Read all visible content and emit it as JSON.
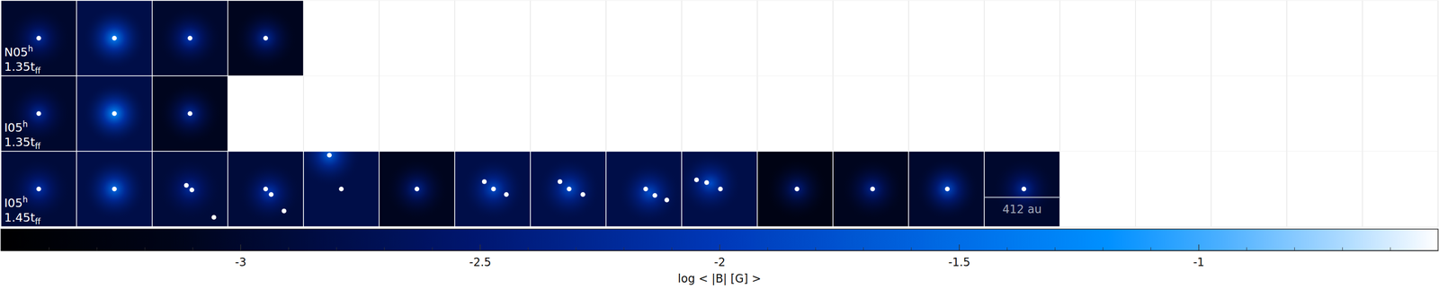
{
  "chart_data": {
    "type": "image_grid",
    "columns": 19,
    "xlim": [
      -206,
      206
    ],
    "ylim": [
      -206,
      206
    ],
    "scale_bar": {
      "value": 412,
      "label": "412 au",
      "row": 2,
      "panel": 13
    },
    "rows": [
      {
        "name": "N05",
        "name_sup": "h",
        "time": "1.35t",
        "time_sub": "ff",
        "panels": [
          {
            "background": -3.0,
            "peak": -2.2,
            "glow": [
              0,
              0
            ],
            "sinks": [
              [
                0,
                0
              ]
            ]
          },
          {
            "background": -2.8,
            "peak": -1.3,
            "glow": [
              0,
              0
            ],
            "sinks": [
              [
                0,
                0
              ]
            ]
          },
          {
            "background": -3.0,
            "peak": -2.0,
            "glow": [
              0,
              0
            ],
            "sinks": [
              [
                0,
                0
              ]
            ]
          },
          {
            "background": -3.1,
            "peak": -2.2,
            "glow": [
              0,
              0
            ],
            "sinks": [
              [
                0,
                0
              ]
            ]
          }
        ]
      },
      {
        "name": "I05",
        "name_sup": "h",
        "time": "1.35t",
        "time_sub": "ff",
        "panels": [
          {
            "background": -3.0,
            "peak": -2.2,
            "glow": [
              0,
              0
            ],
            "sinks": [
              [
                0,
                0
              ]
            ]
          },
          {
            "background": -2.8,
            "peak": -1.2,
            "glow": [
              0,
              0
            ],
            "sinks": [
              [
                0,
                0
              ]
            ]
          },
          {
            "background": -3.1,
            "peak": -2.2,
            "glow": [
              0,
              0
            ],
            "sinks": [
              [
                0,
                0
              ]
            ]
          }
        ]
      },
      {
        "name": "I05",
        "name_sup": "h",
        "time": "1.45t",
        "time_sub": "ff",
        "panels": [
          {
            "background": -2.9,
            "peak": -2.1,
            "glow": [
              0,
              0
            ],
            "sinks": [
              [
                0,
                0
              ]
            ]
          },
          {
            "background": -2.8,
            "peak": -1.5,
            "glow": [
              0,
              0
            ],
            "sinks": [
              [
                0,
                0
              ]
            ]
          },
          {
            "background": -2.9,
            "peak": -2.2,
            "glow": [
              0,
              0
            ],
            "sinks": [
              [
                -20,
                20
              ],
              [
                10,
                -5
              ],
              [
                130,
                -155
              ]
            ]
          },
          {
            "background": -2.9,
            "peak": -2.0,
            "glow": [
              20,
              -20
            ],
            "sinks": [
              [
                0,
                0
              ],
              [
                30,
                -30
              ],
              [
                100,
                -120
              ]
            ]
          },
          {
            "background": -2.8,
            "peak": -1.6,
            "glow": [
              -65,
              185
            ],
            "sinks": [
              [
                -65,
                185
              ],
              [
                0,
                0
              ]
            ]
          },
          {
            "background": -3.1,
            "peak": -2.3,
            "glow": [
              0,
              0
            ],
            "sinks": [
              [
                0,
                0
              ]
            ]
          },
          {
            "background": -2.8,
            "peak": -1.8,
            "glow": [
              5,
              0
            ],
            "sinks": [
              [
                -45,
                40
              ],
              [
                5,
                0
              ],
              [
                75,
                -30
              ]
            ]
          },
          {
            "background": -2.8,
            "peak": -1.8,
            "glow": [
              5,
              0
            ],
            "sinks": [
              [
                -45,
                40
              ],
              [
                5,
                0
              ],
              [
                80,
                -30
              ]
            ]
          },
          {
            "background": -2.8,
            "peak": -1.8,
            "glow": [
              30,
              -20
            ],
            "sinks": [
              [
                10,
                0
              ],
              [
                60,
                -35
              ],
              [
                125,
                -60
              ]
            ]
          },
          {
            "background": -2.8,
            "peak": -1.8,
            "glow": [
              -50,
              30
            ],
            "sinks": [
              [
                -125,
                50
              ],
              [
                -70,
                35
              ],
              [
                5,
                0
              ]
            ]
          },
          {
            "background": -3.2,
            "peak": -2.4,
            "glow": [
              10,
              0
            ],
            "sinks": [
              [
                10,
                0
              ]
            ]
          },
          {
            "background": -3.1,
            "peak": -2.3,
            "glow": [
              10,
              0
            ],
            "sinks": [
              [
                10,
                0
              ]
            ]
          },
          {
            "background": -3.0,
            "peak": -1.8,
            "glow": [
              5,
              0
            ],
            "sinks": [
              [
                5,
                0
              ]
            ]
          },
          {
            "background": -3.0,
            "peak": -2.2,
            "glow": [
              10,
              0
            ],
            "sinks": [
              [
                10,
                0
              ]
            ]
          }
        ]
      }
    ],
    "colorbar": {
      "label": "log < |B| [G] >",
      "lim": [
        -3.5,
        -0.5
      ],
      "ticks": [
        -3,
        -2.5,
        -2,
        -1.5,
        -1
      ],
      "minor_ticks": [
        -3.4,
        -3.3,
        -3.2,
        -3.1,
        -2.9,
        -2.8,
        -2.7,
        -2.6,
        -2.4,
        -2.3,
        -2.2,
        -2.1,
        -1.9,
        -1.8,
        -1.7,
        -1.6,
        -1.4,
        -1.3,
        -1.2,
        -1.1,
        -0.9,
        -0.8,
        -0.7,
        -0.6
      ]
    }
  }
}
